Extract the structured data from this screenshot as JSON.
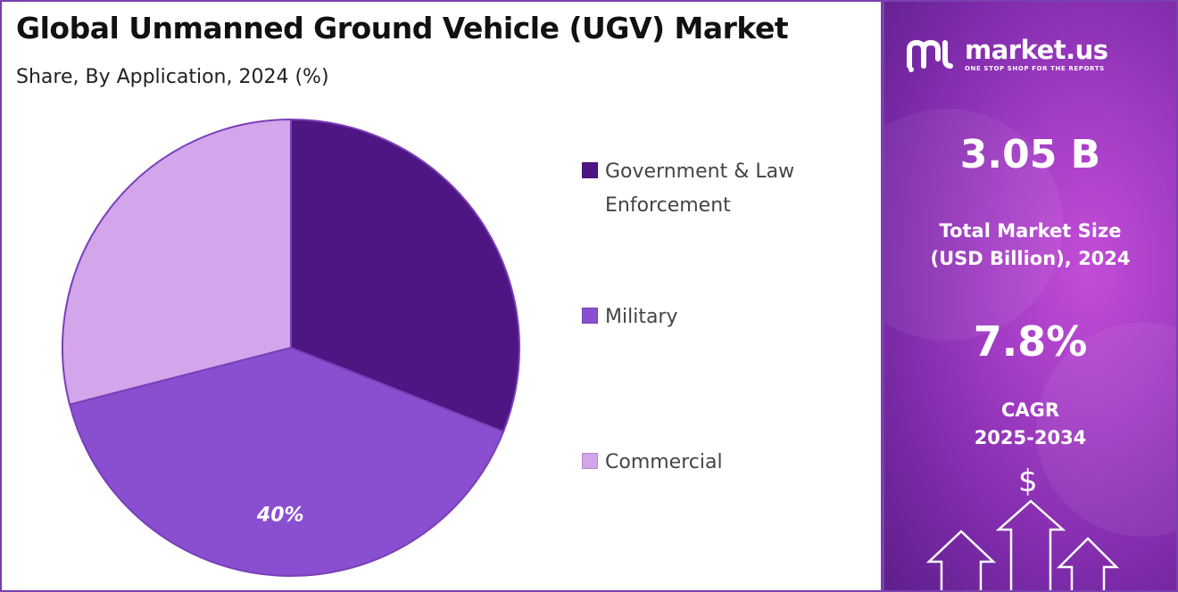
{
  "header": {
    "title": "Global Unmanned Ground Vehicle (UGV) Market",
    "subtitle": "Share, By Application, 2024 (%)"
  },
  "chart_data": {
    "type": "pie",
    "categories": [
      "Government & Law Enforcement",
      "Military",
      "Commercial"
    ],
    "values": [
      31,
      40,
      29
    ],
    "data_labels": [
      "",
      "40%",
      ""
    ],
    "colors": [
      "#4e1683",
      "#8a4fd1",
      "#d3a5ea"
    ],
    "legend_position": "right"
  },
  "legend": {
    "items": [
      {
        "label": "Government & Law Enforcement",
        "color": "#4e1683"
      },
      {
        "label": "Military",
        "color": "#8a4fd1"
      },
      {
        "label": "Commercial",
        "color": "#d3a5ea"
      }
    ]
  },
  "sidebar": {
    "brand_name": "market.us",
    "brand_tagline": "ONE STOP SHOP FOR THE REPORTS",
    "market_size_value": "3.05 B",
    "market_size_label_line1": "Total Market Size",
    "market_size_label_line2": "(USD Billion), 2024",
    "cagr_value": "7.8%",
    "cagr_label_line1": "CAGR",
    "cagr_label_line2": "2025-2034",
    "currency_symbol": "$"
  },
  "colors": {
    "accent": "#7b3fb0",
    "panel_gradient_center": "#c34dd6",
    "panel_gradient_edge": "#5e1f8a"
  }
}
